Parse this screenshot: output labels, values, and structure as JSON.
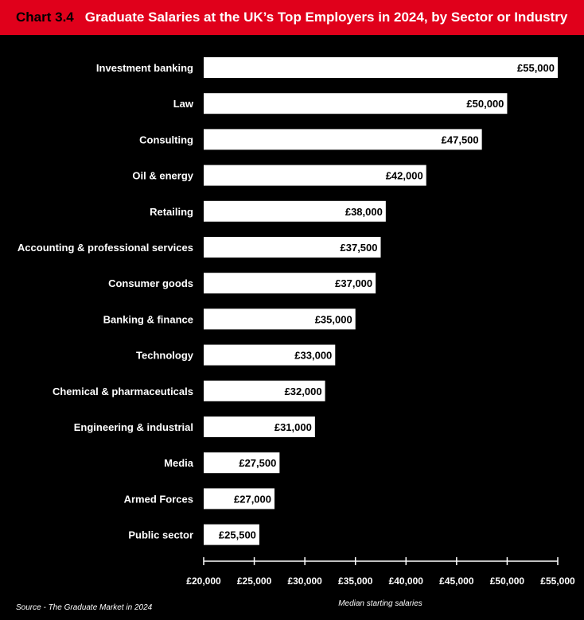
{
  "header": {
    "chart_number": "Chart 3.4",
    "title": "Graduate Salaries at the UK’s Top Employers in 2024, by Sector or Industry"
  },
  "source": "Source - The Graduate Market in 2024",
  "chart_data": {
    "type": "bar",
    "orientation": "horizontal",
    "title": "Graduate Salaries at the UK’s Top Employers in 2024, by Sector or Industry",
    "xlabel": "Median starting salaries",
    "ylabel": "",
    "xlim": [
      20000,
      55000
    ],
    "categories": [
      "Investment banking",
      "Law",
      "Consulting",
      "Oil & energy",
      "Retailing",
      "Accounting & professional services",
      "Consumer goods",
      "Banking & finance",
      "Technology",
      "Chemical & pharmaceuticals",
      "Engineering & industrial",
      "Media",
      "Armed Forces",
      "Public sector"
    ],
    "values": [
      55000,
      50000,
      47500,
      42000,
      38000,
      37500,
      37000,
      35000,
      33000,
      32000,
      31000,
      27500,
      27000,
      25500
    ],
    "value_labels": [
      "£55,000",
      "£50,000",
      "£47,500",
      "£42,000",
      "£38,000",
      "£37,500",
      "£37,000",
      "£35,000",
      "£33,000",
      "£32,000",
      "£31,000",
      "£27,500",
      "£27,000",
      "£25,500"
    ],
    "x_ticks": [
      20000,
      25000,
      30000,
      35000,
      40000,
      45000,
      50000,
      55000
    ],
    "x_tick_labels": [
      "£20,000",
      "£25,000",
      "£30,000",
      "£35,000",
      "£40,000",
      "£45,000",
      "£50,000",
      "£55,000"
    ],
    "grid": false,
    "colors": {
      "background": "#000000",
      "bar": "#ffffff",
      "header": "#e0001b"
    }
  }
}
